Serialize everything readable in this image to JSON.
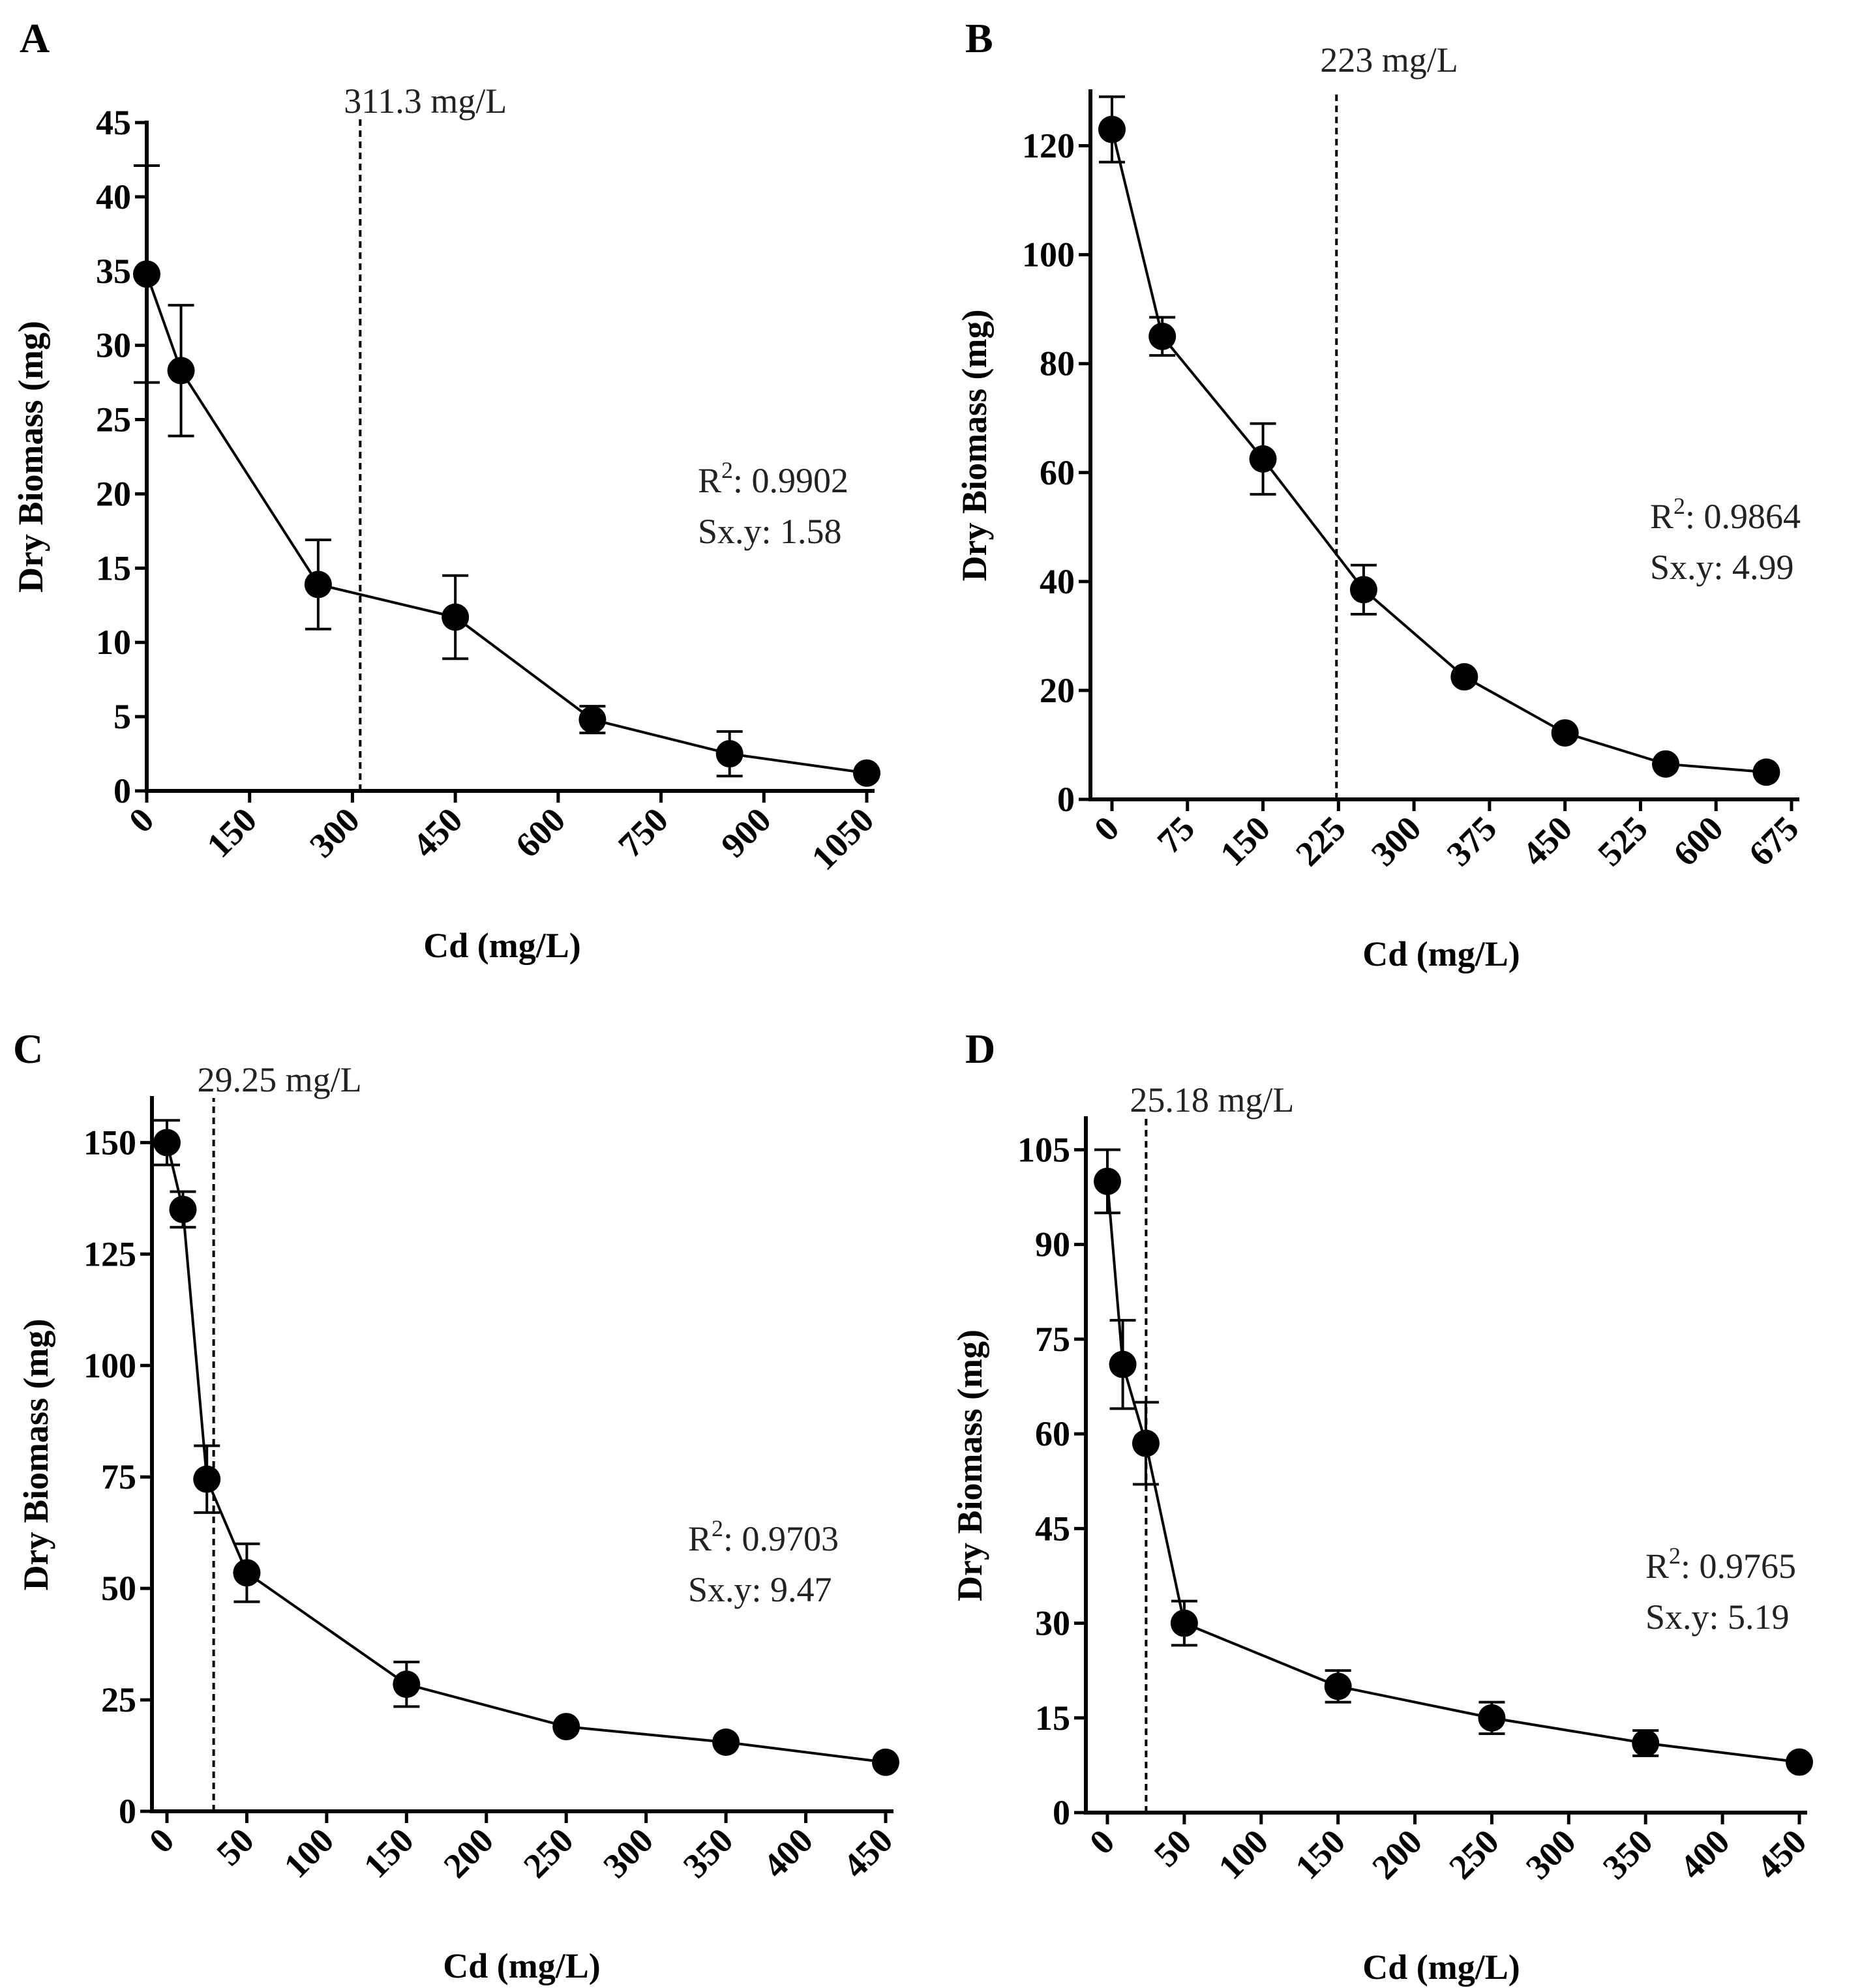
{
  "chart_data": [
    {
      "type": "line",
      "panel": "A",
      "xlabel": "Cd (mg/L)",
      "ylabel": "Dry Biomass (mg)",
      "xlim": [
        0,
        1050
      ],
      "ylim": [
        0,
        45
      ],
      "xticks": [
        0,
        150,
        300,
        450,
        600,
        750,
        900,
        1050
      ],
      "yticks": [
        0,
        5,
        10,
        15,
        20,
        25,
        30,
        35,
        40,
        45
      ],
      "x": [
        0,
        50,
        250,
        450,
        650,
        850,
        1050
      ],
      "y": [
        34.8,
        28.3,
        13.9,
        11.7,
        4.8,
        2.5,
        1.2
      ],
      "err": [
        7.3,
        4.4,
        3.0,
        2.8,
        0.9,
        1.5,
        0
      ],
      "threshold": {
        "x": 311.3,
        "label": "311.3 mg/L"
      },
      "stats": {
        "r2": "R",
        "r2_sup": "2",
        "r2_value": ": 0.9902",
        "sxy": "Sx.y: 1.58"
      },
      "grid": false
    },
    {
      "type": "line",
      "panel": "B",
      "xlabel": "Cd (mg/L)",
      "ylabel": "Dry Biomass (mg)",
      "xlim": [
        0,
        675
      ],
      "ylim": [
        0,
        130
      ],
      "xticks": [
        0,
        75,
        150,
        225,
        300,
        375,
        450,
        525,
        600,
        675
      ],
      "yticks": [
        0,
        20,
        40,
        60,
        80,
        100,
        120
      ],
      "x": [
        0,
        50,
        150,
        250,
        350,
        450,
        550,
        650
      ],
      "y": [
        123,
        85,
        62.5,
        38.5,
        22.5,
        12.2,
        6.5,
        5
      ],
      "err": [
        6,
        3.5,
        6.5,
        4.5,
        0,
        0,
        0,
        0
      ],
      "threshold": {
        "x": 223,
        "label": "223 mg/L"
      },
      "stats": {
        "r2": "R",
        "r2_sup": "2",
        "r2_value": ": 0.9864",
        "sxy": "Sx.y: 4.99"
      },
      "grid": false
    },
    {
      "type": "line",
      "panel": "C",
      "xlabel": "Cd (mg/L)",
      "ylabel": "Dry Biomass (mg)",
      "xlim": [
        0,
        450
      ],
      "ylim": [
        0,
        160
      ],
      "xticks": [
        0,
        50,
        100,
        150,
        200,
        250,
        300,
        350,
        400,
        450
      ],
      "yticks": [
        0,
        25,
        50,
        75,
        100,
        125,
        150
      ],
      "x": [
        0,
        10,
        25,
        50,
        150,
        250,
        350,
        450
      ],
      "y": [
        150,
        135,
        74.5,
        53.5,
        28.5,
        19,
        15.5,
        11
      ],
      "err": [
        5,
        4,
        7.5,
        6.5,
        5,
        0,
        0,
        0
      ],
      "threshold": {
        "x": 29.25,
        "label": "29.25 mg/L"
      },
      "stats": {
        "r2": "R",
        "r2_sup": "2",
        "r2_value": ": 0.9703",
        "sxy": "Sx.y: 9.47"
      },
      "grid": false
    },
    {
      "type": "line",
      "panel": "D",
      "xlabel": "Cd (mg/L)",
      "ylabel": "Dry Biomass (mg)",
      "xlim": [
        0,
        450
      ],
      "ylim": [
        0,
        110
      ],
      "xticks": [
        0,
        50,
        100,
        150,
        200,
        250,
        300,
        350,
        400,
        450
      ],
      "yticks": [
        0,
        15,
        30,
        45,
        60,
        75,
        90,
        105
      ],
      "x": [
        0,
        10,
        25,
        50,
        150,
        250,
        350,
        450
      ],
      "y": [
        100,
        71,
        58.5,
        30,
        20,
        15,
        11,
        8
      ],
      "err": [
        5,
        7,
        6.5,
        3.5,
        2.5,
        2.5,
        2,
        0
      ],
      "threshold": {
        "x": 25.18,
        "label": "25.18 mg/L"
      },
      "stats": {
        "r2": "R",
        "r2_sup": "2",
        "r2_value": ": 0.9765",
        "sxy": "Sx.y: 5.19"
      },
      "grid": false
    }
  ]
}
